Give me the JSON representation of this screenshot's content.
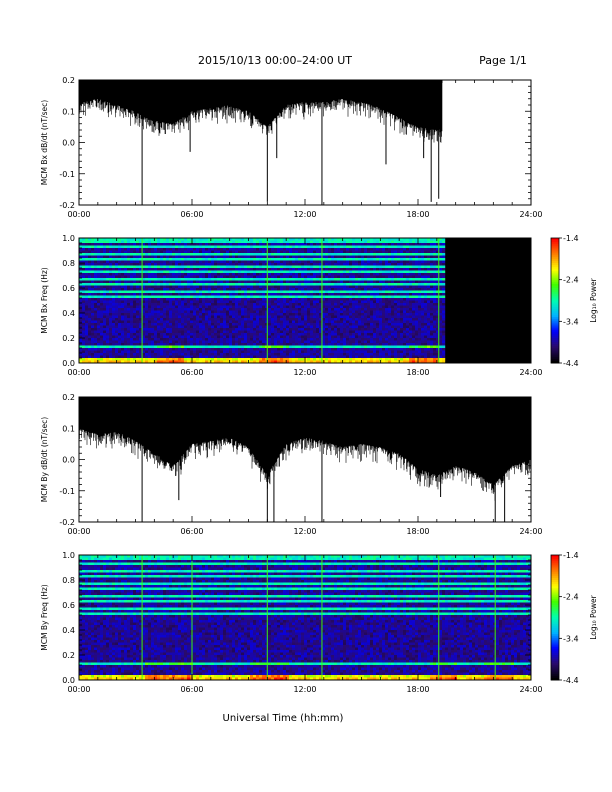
{
  "header": {
    "title": "2015/10/13  00:00–24:00 UT",
    "page": "Page 1/1"
  },
  "x_axis": {
    "label": "Universal Time (hh:mm)",
    "range_hours": [
      0,
      24
    ],
    "tick_labels": [
      "00:00",
      "06:00",
      "12:00",
      "18:00",
      "24:00"
    ]
  },
  "colorbar": {
    "label": "Log₁₀ Power",
    "range": [
      -4.4,
      -1.4
    ],
    "tick_labels": [
      "-1.4",
      "-2.4",
      "-3.4",
      "-4.4"
    ]
  },
  "colors": {
    "trace": "#000000",
    "no_data": "#000000",
    "colormap": [
      "#000000",
      "#2a0a6e",
      "#0000ff",
      "#00b4ff",
      "#00ffb0",
      "#40ff00",
      "#ffff00",
      "#ff8000",
      "#ff0000"
    ]
  },
  "chart_data": [
    {
      "type": "line",
      "ylabel": "MCM Bx dB/dt (nT/sec)",
      "ylim": [
        -0.2,
        0.2
      ],
      "y_tick_labels": [
        "0.2",
        "0.1",
        "0.0",
        "-0.1",
        "-0.2"
      ],
      "data_end_hour": 19.3,
      "envelope_top": 0.2,
      "envelope_bottom": [
        [
          0,
          0.13
        ],
        [
          1,
          0.14
        ],
        [
          2,
          0.12
        ],
        [
          3,
          0.1
        ],
        [
          3.5,
          0.08
        ],
        [
          4,
          0.07
        ],
        [
          5,
          0.06
        ],
        [
          6,
          0.1
        ],
        [
          7,
          0.11
        ],
        [
          8,
          0.12
        ],
        [
          9,
          0.1
        ],
        [
          10,
          0.05
        ],
        [
          11,
          0.12
        ],
        [
          12,
          0.13
        ],
        [
          13,
          0.13
        ],
        [
          14,
          0.14
        ],
        [
          15,
          0.13
        ],
        [
          16,
          0.11
        ],
        [
          17,
          0.08
        ],
        [
          18,
          0.05
        ],
        [
          19,
          0.04
        ],
        [
          19.3,
          0.05
        ]
      ],
      "spikes": [
        {
          "hour": 3.35,
          "value": -0.2
        },
        {
          "hour": 10.0,
          "value": -0.19
        },
        {
          "hour": 12.9,
          "value": -0.2
        },
        {
          "hour": 18.7,
          "value": -0.19
        },
        {
          "hour": 19.1,
          "value": -0.18
        },
        {
          "hour": 5.9,
          "value": -0.03
        },
        {
          "hour": 10.5,
          "value": -0.05
        },
        {
          "hour": 16.3,
          "value": -0.07
        },
        {
          "hour": 18.3,
          "value": -0.05
        }
      ]
    },
    {
      "type": "heatmap",
      "ylabel": "MCM Bx Freq (Hz)",
      "ylim": [
        0.0,
        1.0
      ],
      "y_tick_labels": [
        "1.0",
        "0.8",
        "0.6",
        "0.4",
        "0.2",
        "0.0"
      ],
      "data_end_hour": 19.3,
      "value_range": [
        -4.4,
        -1.4
      ],
      "dark_band_freqs_hz": [
        0.05,
        0.08,
        0.11,
        0.15,
        0.18,
        0.22,
        0.26,
        0.3,
        0.34,
        0.38,
        0.42,
        0.46,
        0.5,
        0.55,
        0.6,
        0.65,
        0.7,
        0.75,
        0.8,
        0.85,
        0.9,
        0.95
      ],
      "line_events_hours": [
        3.35,
        10.0,
        12.9,
        19.1
      ],
      "active_hours": [
        [
          4.0,
          5.5
        ],
        [
          9.5,
          11.0
        ],
        [
          17.5,
          19.0
        ]
      ]
    },
    {
      "type": "line",
      "ylabel": "MCM By dB/dt (nT/sec)",
      "ylim": [
        -0.2,
        0.2
      ],
      "y_tick_labels": [
        "0.2",
        "0.1",
        "0.0",
        "-0.1",
        "-0.2"
      ],
      "data_end_hour": 24,
      "envelope_top": 0.2,
      "envelope_bottom": [
        [
          0,
          0.1
        ],
        [
          1,
          0.08
        ],
        [
          2,
          0.09
        ],
        [
          3,
          0.06
        ],
        [
          4,
          0.02
        ],
        [
          5,
          -0.02
        ],
        [
          6,
          0.05
        ],
        [
          7,
          0.06
        ],
        [
          8,
          0.07
        ],
        [
          9,
          0.04
        ],
        [
          10,
          -0.05
        ],
        [
          11,
          0.05
        ],
        [
          12,
          0.07
        ],
        [
          13,
          0.06
        ],
        [
          14,
          0.04
        ],
        [
          15,
          0.05
        ],
        [
          16,
          0.04
        ],
        [
          17,
          0.02
        ],
        [
          18,
          -0.03
        ],
        [
          19,
          -0.05
        ],
        [
          20,
          -0.02
        ],
        [
          21,
          -0.04
        ],
        [
          22,
          -0.08
        ],
        [
          23,
          -0.02
        ],
        [
          24,
          0.0
        ]
      ],
      "spikes": [
        {
          "hour": 3.35,
          "value": -0.2
        },
        {
          "hour": 10.0,
          "value": -0.2
        },
        {
          "hour": 10.35,
          "value": -0.2
        },
        {
          "hour": 12.9,
          "value": -0.2
        },
        {
          "hour": 5.3,
          "value": -0.13
        },
        {
          "hour": 22.1,
          "value": -0.2
        },
        {
          "hour": 22.6,
          "value": -0.2
        },
        {
          "hour": 19.2,
          "value": -0.12
        }
      ]
    },
    {
      "type": "heatmap",
      "ylabel": "MCM By Freq (Hz)",
      "ylim": [
        0.0,
        1.0
      ],
      "y_tick_labels": [
        "1.0",
        "0.8",
        "0.6",
        "0.4",
        "0.2",
        "0.0"
      ],
      "data_end_hour": 24,
      "value_range": [
        -4.4,
        -1.4
      ],
      "dark_band_freqs_hz": [
        0.05,
        0.08,
        0.11,
        0.15,
        0.18,
        0.22,
        0.26,
        0.3,
        0.34,
        0.38,
        0.42,
        0.46,
        0.5,
        0.55,
        0.6,
        0.65,
        0.7,
        0.75,
        0.8,
        0.85,
        0.9,
        0.95
      ],
      "line_events_hours": [
        3.35,
        6.0,
        10.0,
        12.9,
        19.1,
        22.1
      ],
      "active_hours": [
        [
          3.5,
          6.0
        ],
        [
          9.0,
          11.0
        ],
        [
          18.5,
          20.0
        ],
        [
          21.5,
          23.0
        ]
      ]
    }
  ]
}
